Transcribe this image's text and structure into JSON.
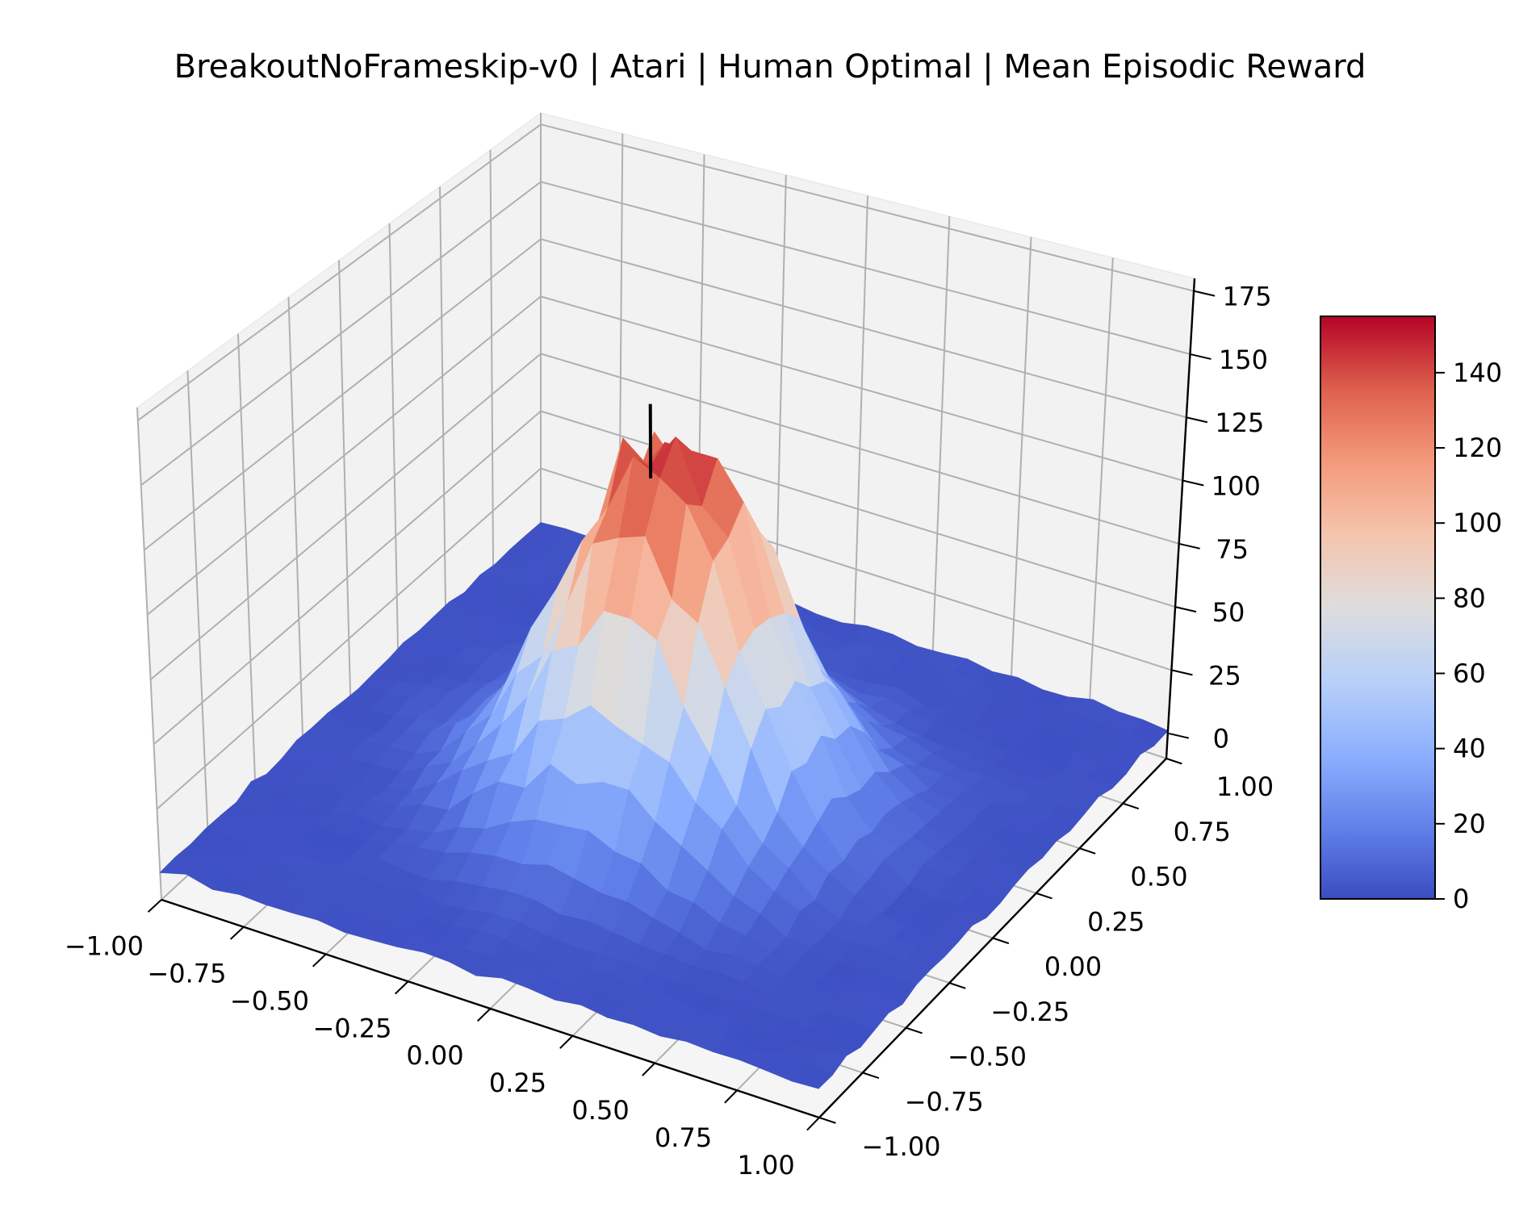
{
  "chart_data": {
    "type": "surface3d",
    "title": "BreakoutNoFrameskip-v0 | Atari | Human Optimal | Mean Episodic Reward",
    "xlabel": "",
    "ylabel": "",
    "zlabel": "",
    "x_ticks": [
      "−1.00",
      "−0.75",
      "−0.50",
      "−0.25",
      "0.00",
      "0.25",
      "0.50",
      "0.75",
      "1.00"
    ],
    "y_ticks": [
      "−1.00",
      "−0.75",
      "−0.50",
      "−0.25",
      "0.00",
      "0.25",
      "0.50",
      "0.75",
      "1.00"
    ],
    "z_ticks": [
      "0",
      "25",
      "50",
      "75",
      "100",
      "125",
      "150",
      "175"
    ],
    "xlim": [
      -1.0,
      1.0
    ],
    "ylim": [
      -1.0,
      1.0
    ],
    "zlim": [
      -10,
      180
    ],
    "grid": true,
    "surface": {
      "x_range": [
        -1.0,
        1.0
      ],
      "y_range": [
        -1.0,
        1.0
      ],
      "grid_resolution": 25,
      "peak": {
        "x": 0.0,
        "y": 0.0,
        "z": 154
      },
      "peak_width": 0.27,
      "base_level": 2
    },
    "marker_line": {
      "x": 0.0,
      "y": 0.0,
      "z_from": 125,
      "z_to": 155,
      "color": "#000000"
    },
    "colormap": "coolwarm",
    "colorbar": {
      "range": [
        0,
        155
      ],
      "ticks": [
        "0",
        "20",
        "40",
        "60",
        "80",
        "100",
        "120",
        "140"
      ],
      "tick_values": [
        0,
        20,
        40,
        60,
        80,
        100,
        120,
        140
      ]
    }
  }
}
